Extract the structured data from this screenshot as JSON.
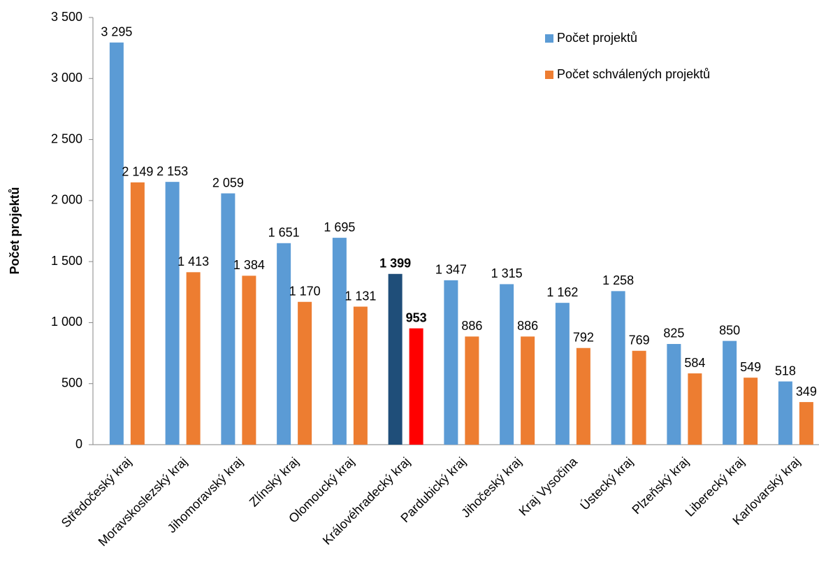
{
  "chart_data": {
    "type": "bar",
    "y_label": "Počet projektů",
    "categories": [
      "Středočeský kraj",
      "Moravskoslezský kraj",
      "Jihomoravský kraj",
      "Zlínský kraj",
      "Olomoucký kraj",
      "Královéhradecký kraj",
      "Pardubický kraj",
      "Jihočeský kraj",
      "Kraj Vysočina",
      "Ústecký kraj",
      "Plzeňský kraj",
      "Liberecký kraj",
      "Karlovarský kraj"
    ],
    "series": [
      {
        "name": "Počet projektů",
        "color": "#5b9bd5",
        "values": [
          3295,
          2153,
          2059,
          1651,
          1695,
          1399,
          1347,
          1315,
          1162,
          1258,
          825,
          850,
          518
        ],
        "value_labels": [
          "3 295",
          "2 153",
          "2 059",
          "1 651",
          "1 695",
          "1 399",
          "1 347",
          "1 315",
          "1 162",
          "1 258",
          "825",
          "850",
          "518"
        ]
      },
      {
        "name": "Počet schválených projektů",
        "color": "#ed7d31",
        "values": [
          2149,
          1413,
          1384,
          1170,
          1131,
          953,
          886,
          886,
          792,
          769,
          584,
          549,
          349
        ],
        "value_labels": [
          "2 149",
          "1 413",
          "1 384",
          "1 170",
          "1 131",
          "953",
          "886",
          "886",
          "792",
          "769",
          "584",
          "549",
          "349"
        ]
      }
    ],
    "highlight": {
      "category": "Královéhradecký kraj",
      "colors": [
        "#1f4e79",
        "#ff0000"
      ],
      "bold": true
    },
    "ylim": [
      0,
      3500
    ],
    "yticks": [
      0,
      500,
      {
        "value": 1000,
        "label": "1 000"
      },
      {
        "value": 1500,
        "label": "1 500"
      },
      {
        "value": 2000,
        "label": "2 000"
      },
      {
        "value": 2500,
        "label": "2 500"
      },
      {
        "value": 3000,
        "label": "3 000"
      },
      {
        "value": 3500,
        "label": "3 500"
      }
    ],
    "grid": false,
    "legend": "top-right"
  }
}
